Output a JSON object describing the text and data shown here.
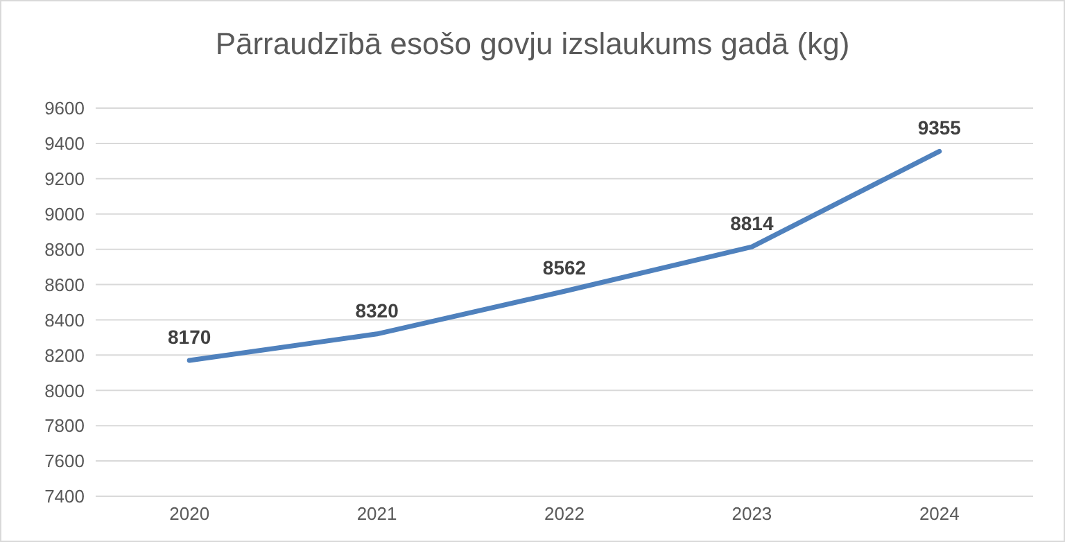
{
  "chart_data": {
    "type": "line",
    "title": "Pārraudzībā esošo govju izslaukums gadā (kg)",
    "categories": [
      "2020",
      "2021",
      "2022",
      "2023",
      "2024"
    ],
    "series": [
      {
        "color": "#4f81bd",
        "values": [
          8170,
          8320,
          8562,
          8814,
          9355
        ]
      }
    ],
    "ylim": [
      7400,
      9600
    ],
    "yticks": [
      7400,
      7600,
      7800,
      8000,
      8200,
      8400,
      8600,
      8800,
      9000,
      9200,
      9400,
      9600
    ],
    "grid": "y",
    "legend": false,
    "marker": "none",
    "line_style": "solid",
    "data_labels": true
  }
}
